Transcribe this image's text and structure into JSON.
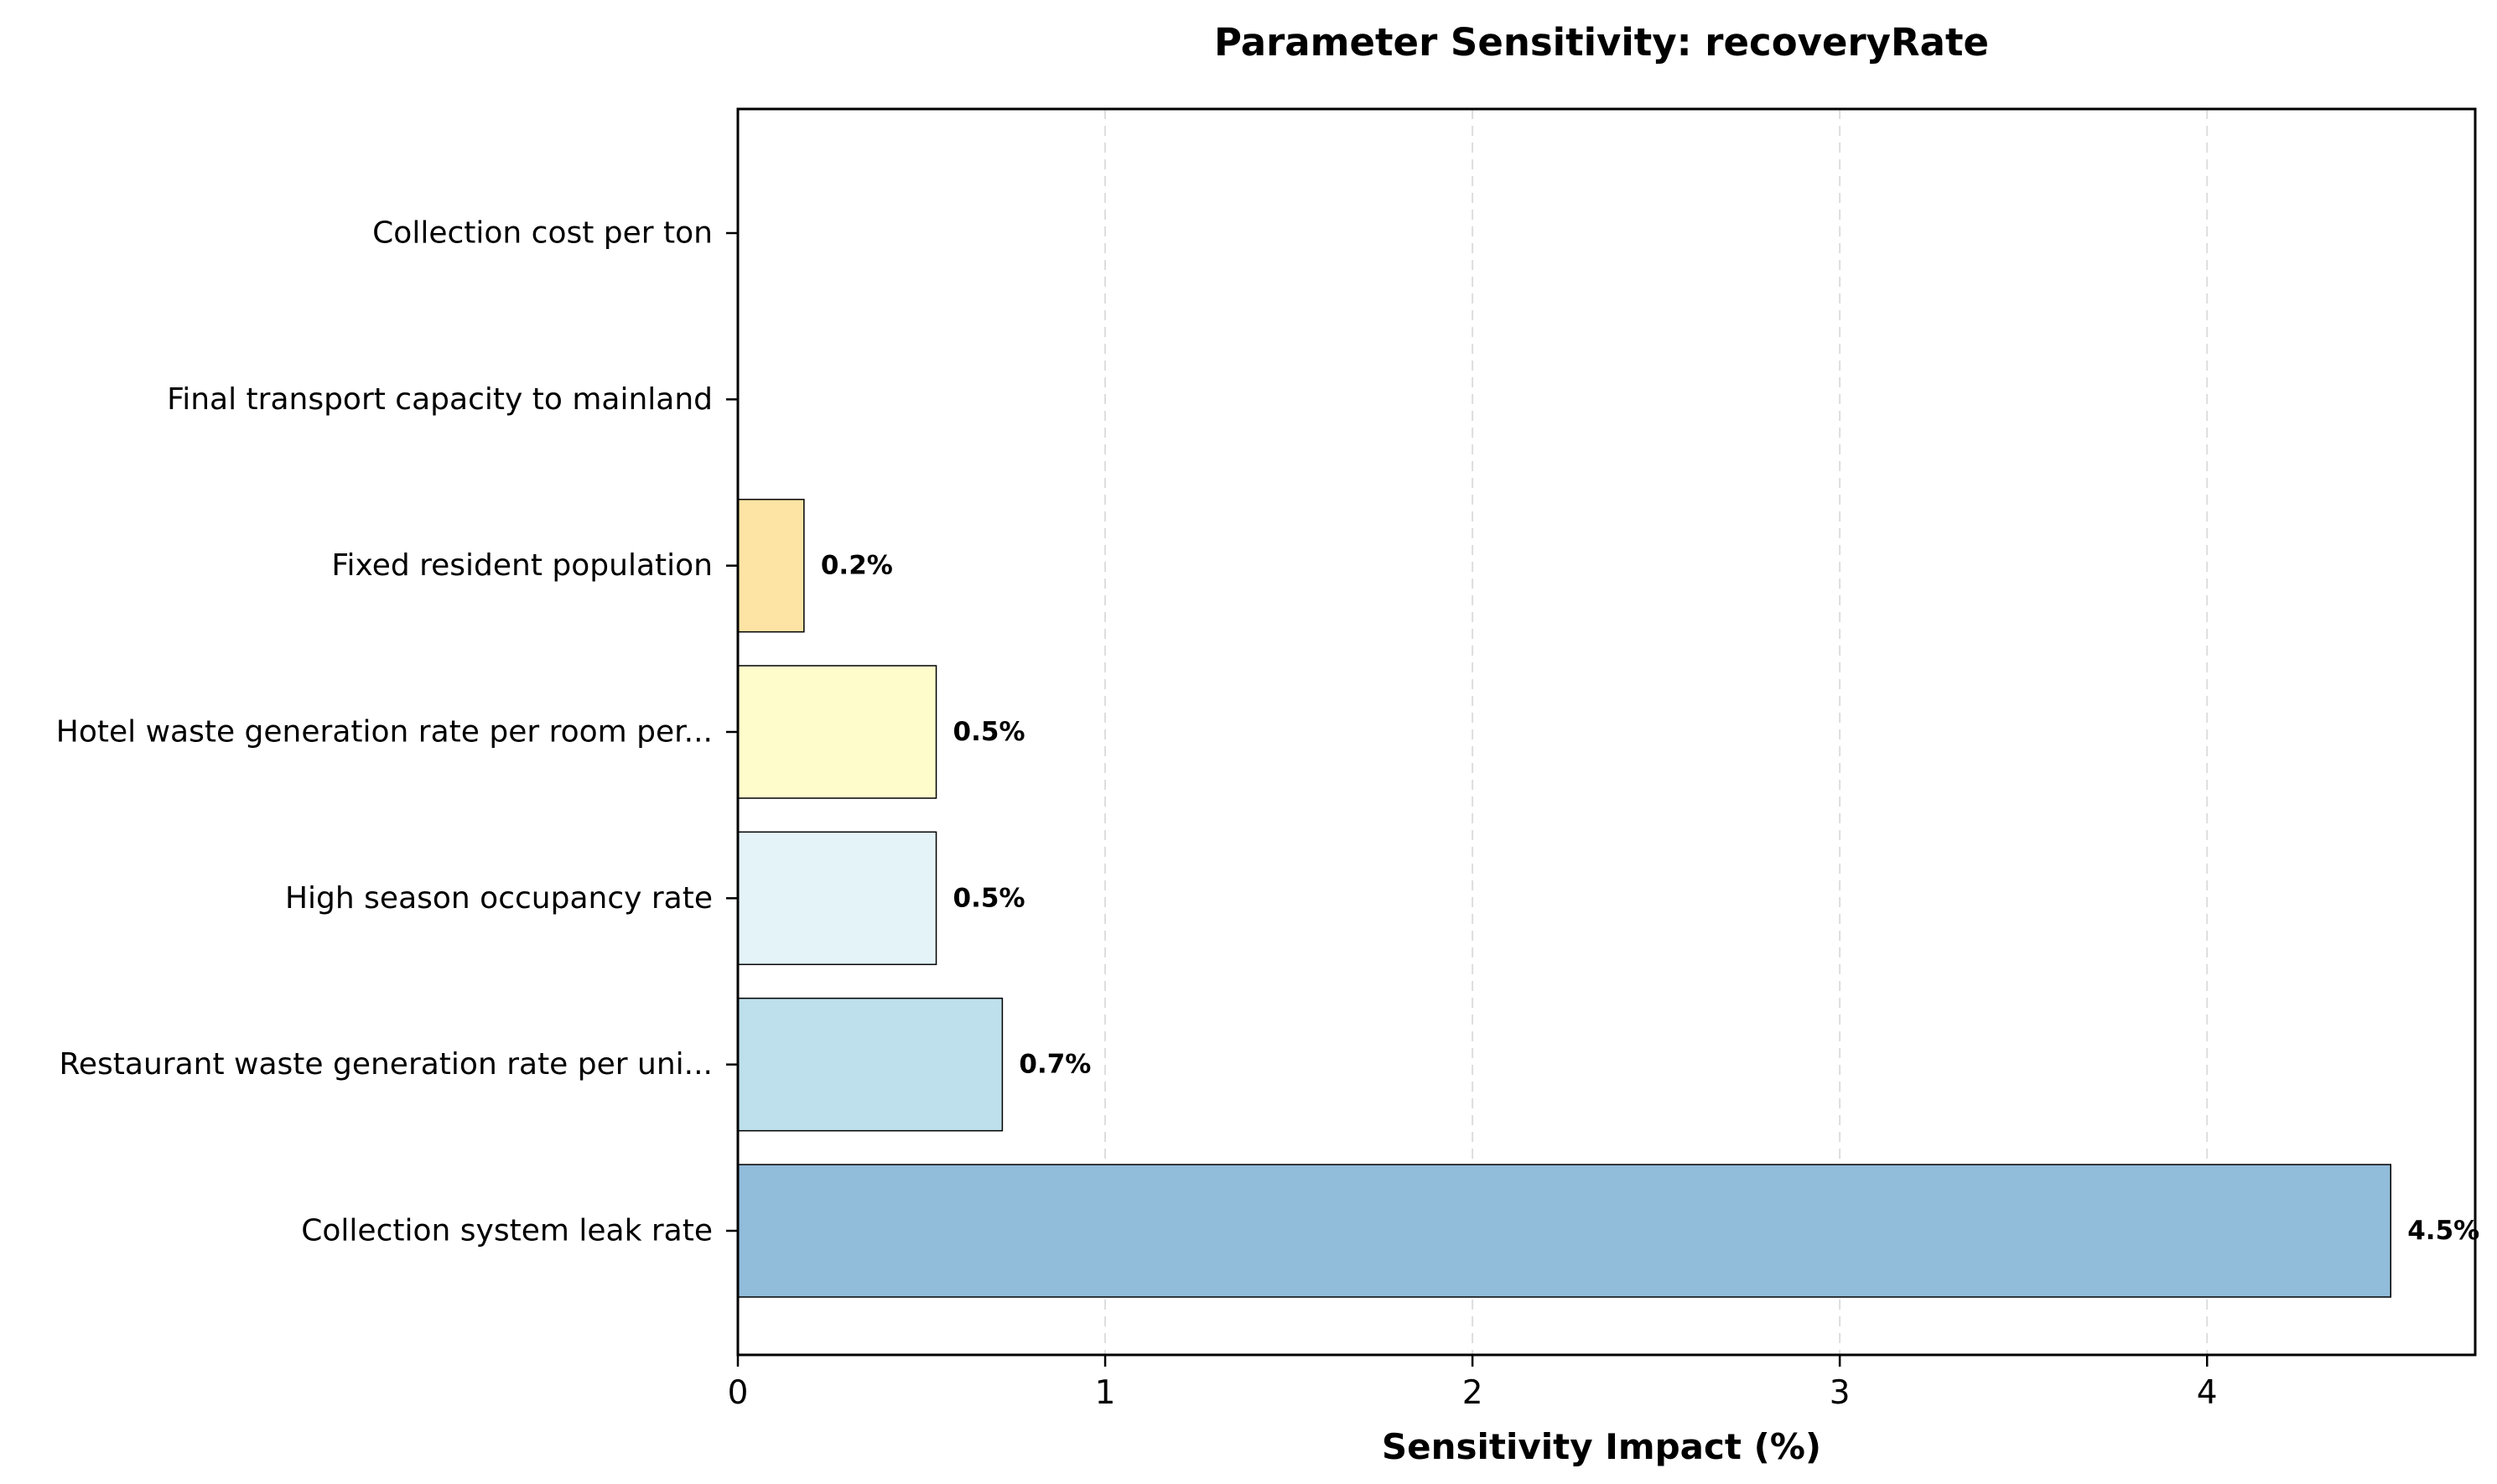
{
  "chart_data": {
    "type": "bar",
    "orientation": "horizontal",
    "title": "Parameter Sensitivity: recoveryRate",
    "xlabel": "Sensitivity Impact (%)",
    "ylabel": "",
    "xlim": [
      0,
      4.73
    ],
    "xticks": [
      0,
      1,
      2,
      3,
      4
    ],
    "grid": "x-dashed",
    "categories": [
      "Collection system leak rate",
      "Restaurant waste generation rate per uni...",
      "High season occupancy rate",
      "Hotel waste generation rate per room per...",
      "Fixed resident population",
      "Final transport capacity to mainland",
      "Collection cost per ton"
    ],
    "values": [
      4.5,
      0.72,
      0.54,
      0.54,
      0.18,
      0,
      0
    ],
    "data_labels": [
      "4.5%",
      "0.7%",
      "0.5%",
      "0.5%",
      "0.2%",
      "",
      ""
    ],
    "colors": [
      "#91bcda",
      "#bde0ec",
      "#e3f3f8",
      "#fffccc",
      "#fde4a4",
      "#fdae61",
      "#f46d43"
    ]
  }
}
